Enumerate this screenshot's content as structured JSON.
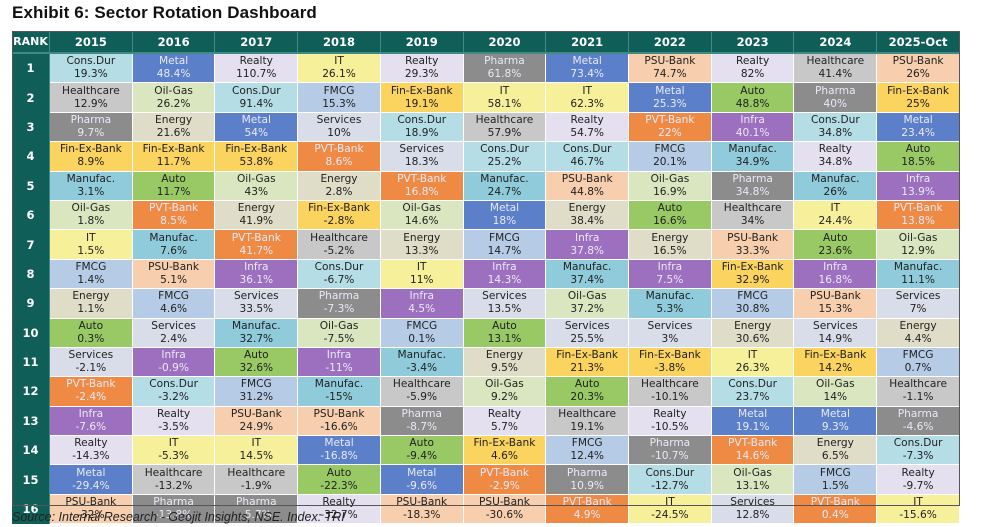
{
  "title": "Exhibit 6: Sector Rotation Dashboard",
  "source": "Source: Internal Research - Geojit Insights, NSE. Index: TRI",
  "header": {
    "rank_label": "RANK",
    "years": [
      "2015",
      "2016",
      "2017",
      "2018",
      "2019",
      "2020",
      "2021",
      "2022",
      "2023",
      "2024",
      "2025-Oct"
    ]
  },
  "sector_colors": {
    "Cons.Dur": "#b4dde6",
    "Metal": "#5b7fc8",
    "Realty": "#e4e0ef",
    "IT": "#f7f09a",
    "Pharma": "#8c8c8c",
    "PSU-Bank": "#f8cfae",
    "Healthcare": "#c8c8c8",
    "Oil-Gas": "#d9e6bf",
    "FMCG": "#b6cce6",
    "Fin-Ex-Bank": "#fbd35f",
    "Auto": "#99c965",
    "Energy": "#dfdcc7",
    "Services": "#d9dde9",
    "PVT-Bank": "#ef8a45",
    "Infra": "#9d6fbf",
    "Manufac.": "#8fcbdb"
  },
  "light_text_sectors": [
    "Metal",
    "Pharma",
    "PVT-Bank",
    "Infra"
  ],
  "rows": [
    {
      "rank": "1",
      "cells": [
        [
          "Cons.Dur",
          "19.3%"
        ],
        [
          "Metal",
          "48.4%"
        ],
        [
          "Realty",
          "110.7%"
        ],
        [
          "IT",
          "26.1%"
        ],
        [
          "Realty",
          "29.3%"
        ],
        [
          "Pharma",
          "61.8%"
        ],
        [
          "Metal",
          "73.4%"
        ],
        [
          "PSU-Bank",
          "74.7%"
        ],
        [
          "Realty",
          "82%"
        ],
        [
          "Healthcare",
          "41.4%"
        ],
        [
          "PSU-Bank",
          "26%"
        ]
      ]
    },
    {
      "rank": "2",
      "cells": [
        [
          "Healthcare",
          "12.9%"
        ],
        [
          "Oil-Gas",
          "26.2%"
        ],
        [
          "Cons.Dur",
          "91.4%"
        ],
        [
          "FMCG",
          "15.3%"
        ],
        [
          "Fin-Ex-Bank",
          "19.1%"
        ],
        [
          "IT",
          "58.1%"
        ],
        [
          "IT",
          "62.3%"
        ],
        [
          "Metal",
          "25.3%"
        ],
        [
          "Auto",
          "48.8%"
        ],
        [
          "Pharma",
          "40%"
        ],
        [
          "Fin-Ex-Bank",
          "25%"
        ]
      ]
    },
    {
      "rank": "3",
      "cells": [
        [
          "Pharma",
          "9.7%"
        ],
        [
          "Energy",
          "21.6%"
        ],
        [
          "Metal",
          "54%"
        ],
        [
          "Services",
          "10%"
        ],
        [
          "Cons.Dur",
          "18.9%"
        ],
        [
          "Healthcare",
          "57.9%"
        ],
        [
          "Realty",
          "54.7%"
        ],
        [
          "PVT-Bank",
          "22%"
        ],
        [
          "Infra",
          "40.1%"
        ],
        [
          "Cons.Dur",
          "34.8%"
        ],
        [
          "Metal",
          "23.4%"
        ]
      ]
    },
    {
      "rank": "4",
      "cells": [
        [
          "Fin-Ex-Bank",
          "8.9%"
        ],
        [
          "Fin-Ex-Bank",
          "11.7%"
        ],
        [
          "Fin-Ex-Bank",
          "53.8%"
        ],
        [
          "PVT-Bank",
          "8.6%"
        ],
        [
          "Services",
          "18.3%"
        ],
        [
          "Cons.Dur",
          "25.2%"
        ],
        [
          "Cons.Dur",
          "46.7%"
        ],
        [
          "FMCG",
          "20.1%"
        ],
        [
          "Manufac.",
          "34.9%"
        ],
        [
          "Realty",
          "34.8%"
        ],
        [
          "Auto",
          "18.5%"
        ]
      ]
    },
    {
      "rank": "5",
      "cells": [
        [
          "Manufac.",
          "3.1%"
        ],
        [
          "Auto",
          "11.7%"
        ],
        [
          "Oil-Gas",
          "43%"
        ],
        [
          "Energy",
          "2.8%"
        ],
        [
          "PVT-Bank",
          "16.8%"
        ],
        [
          "Manufac.",
          "24.7%"
        ],
        [
          "PSU-Bank",
          "44.8%"
        ],
        [
          "Oil-Gas",
          "16.9%"
        ],
        [
          "Pharma",
          "34.8%"
        ],
        [
          "Manufac.",
          "26%"
        ],
        [
          "Infra",
          "13.9%"
        ]
      ]
    },
    {
      "rank": "6",
      "cells": [
        [
          "Oil-Gas",
          "1.8%"
        ],
        [
          "PVT-Bank",
          "8.5%"
        ],
        [
          "Energy",
          "41.9%"
        ],
        [
          "Fin-Ex-Bank",
          "-2.8%"
        ],
        [
          "Oil-Gas",
          "14.6%"
        ],
        [
          "Metal",
          "18%"
        ],
        [
          "Energy",
          "38.4%"
        ],
        [
          "Auto",
          "16.6%"
        ],
        [
          "Healthcare",
          "34%"
        ],
        [
          "IT",
          "24.4%"
        ],
        [
          "PVT-Bank",
          "13.8%"
        ]
      ]
    },
    {
      "rank": "7",
      "cells": [
        [
          "IT",
          "1.5%"
        ],
        [
          "Manufac.",
          "7.6%"
        ],
        [
          "PVT-Bank",
          "41.7%"
        ],
        [
          "Healthcare",
          "-5.2%"
        ],
        [
          "Energy",
          "13.3%"
        ],
        [
          "FMCG",
          "14.7%"
        ],
        [
          "Infra",
          "37.8%"
        ],
        [
          "Energy",
          "16.5%"
        ],
        [
          "PSU-Bank",
          "33.3%"
        ],
        [
          "Auto",
          "23.6%"
        ],
        [
          "Oil-Gas",
          "12.9%"
        ]
      ]
    },
    {
      "rank": "8",
      "cells": [
        [
          "FMCG",
          "1.4%"
        ],
        [
          "PSU-Bank",
          "5.1%"
        ],
        [
          "Infra",
          "36.1%"
        ],
        [
          "Cons.Dur",
          "-6.7%"
        ],
        [
          "IT",
          "11%"
        ],
        [
          "Infra",
          "14.3%"
        ],
        [
          "Manufac.",
          "37.4%"
        ],
        [
          "Infra",
          "7.5%"
        ],
        [
          "Fin-Ex-Bank",
          "32.9%"
        ],
        [
          "Infra",
          "16.8%"
        ],
        [
          "Manufac.",
          "11.1%"
        ]
      ]
    },
    {
      "rank": "9",
      "cells": [
        [
          "Energy",
          "1.1%"
        ],
        [
          "FMCG",
          "4.6%"
        ],
        [
          "Services",
          "33.5%"
        ],
        [
          "Pharma",
          "-7.3%"
        ],
        [
          "Infra",
          "4.5%"
        ],
        [
          "Services",
          "13.5%"
        ],
        [
          "Oil-Gas",
          "37.2%"
        ],
        [
          "Manufac.",
          "5.3%"
        ],
        [
          "FMCG",
          "30.8%"
        ],
        [
          "PSU-Bank",
          "15.3%"
        ],
        [
          "Services",
          "7%"
        ]
      ]
    },
    {
      "rank": "10",
      "cells": [
        [
          "Auto",
          "0.3%"
        ],
        [
          "Services",
          "2.4%"
        ],
        [
          "Manufac.",
          "32.7%"
        ],
        [
          "Oil-Gas",
          "-7.5%"
        ],
        [
          "FMCG",
          "0.1%"
        ],
        [
          "Auto",
          "13.1%"
        ],
        [
          "Services",
          "25.5%"
        ],
        [
          "Services",
          "3%"
        ],
        [
          "Energy",
          "30.6%"
        ],
        [
          "Services",
          "14.9%"
        ],
        [
          "Energy",
          "4.4%"
        ]
      ]
    },
    {
      "rank": "11",
      "cells": [
        [
          "Services",
          "-2.1%"
        ],
        [
          "Infra",
          "-0.9%"
        ],
        [
          "Auto",
          "32.6%"
        ],
        [
          "Infra",
          "-11%"
        ],
        [
          "Manufac.",
          "-3.4%"
        ],
        [
          "Energy",
          "9.5%"
        ],
        [
          "Fin-Ex-Bank",
          "21.3%"
        ],
        [
          "Fin-Ex-Bank",
          "-3.8%"
        ],
        [
          "IT",
          "26.3%"
        ],
        [
          "Fin-Ex-Bank",
          "14.2%"
        ],
        [
          "FMCG",
          "0.7%"
        ]
      ]
    },
    {
      "rank": "12",
      "cells": [
        [
          "PVT-Bank",
          "-2.4%"
        ],
        [
          "Cons.Dur",
          "-3.2%"
        ],
        [
          "FMCG",
          "31.2%"
        ],
        [
          "Manufac.",
          "-15%"
        ],
        [
          "Healthcare",
          "-5.9%"
        ],
        [
          "Oil-Gas",
          "9.2%"
        ],
        [
          "Auto",
          "20.3%"
        ],
        [
          "Healthcare",
          "-10.1%"
        ],
        [
          "Cons.Dur",
          "23.7%"
        ],
        [
          "Oil-Gas",
          "14%"
        ],
        [
          "Healthcare",
          "-1.1%"
        ]
      ]
    },
    {
      "rank": "13",
      "cells": [
        [
          "Infra",
          "-7.6%"
        ],
        [
          "Realty",
          "-3.5%"
        ],
        [
          "PSU-Bank",
          "24.9%"
        ],
        [
          "PSU-Bank",
          "-16.6%"
        ],
        [
          "Pharma",
          "-8.7%"
        ],
        [
          "Realty",
          "5.7%"
        ],
        [
          "Healthcare",
          "19.1%"
        ],
        [
          "Realty",
          "-10.5%"
        ],
        [
          "Metal",
          "19.1%"
        ],
        [
          "Metal",
          "9.3%"
        ],
        [
          "Pharma",
          "-4.6%"
        ]
      ]
    },
    {
      "rank": "14",
      "cells": [
        [
          "Realty",
          "-14.3%"
        ],
        [
          "IT",
          "-5.3%"
        ],
        [
          "IT",
          "14.5%"
        ],
        [
          "Metal",
          "-16.8%"
        ],
        [
          "Auto",
          "-9.4%"
        ],
        [
          "Fin-Ex-Bank",
          "4.6%"
        ],
        [
          "FMCG",
          "12.4%"
        ],
        [
          "Pharma",
          "-10.7%"
        ],
        [
          "PVT-Bank",
          "14.6%"
        ],
        [
          "Energy",
          "6.5%"
        ],
        [
          "Cons.Dur",
          "-7.3%"
        ]
      ]
    },
    {
      "rank": "15",
      "cells": [
        [
          "Metal",
          "-29.4%"
        ],
        [
          "Healthcare",
          "-13.2%"
        ],
        [
          "Healthcare",
          "-1.9%"
        ],
        [
          "Auto",
          "-22.3%"
        ],
        [
          "Metal",
          "-9.6%"
        ],
        [
          "PVT-Bank",
          "-2.9%"
        ],
        [
          "Pharma",
          "10.9%"
        ],
        [
          "Cons.Dur",
          "-12.7%"
        ],
        [
          "Oil-Gas",
          "13.1%"
        ],
        [
          "FMCG",
          "1.5%"
        ],
        [
          "Realty",
          "-9.7%"
        ]
      ]
    },
    {
      "rank": "16",
      "cells": [
        [
          "PSU-Bank",
          "-32%"
        ],
        [
          "Pharma",
          "-13.8%"
        ],
        [
          "Pharma",
          "-5.7%"
        ],
        [
          "Realty",
          "-32.7%"
        ],
        [
          "PSU-Bank",
          "-18.3%"
        ],
        [
          "PSU-Bank",
          "-30.6%"
        ],
        [
          "PVT-Bank",
          "4.9%"
        ],
        [
          "IT",
          "-24.5%"
        ],
        [
          "Services",
          "12.8%"
        ],
        [
          "PVT-Bank",
          "0.4%"
        ],
        [
          "IT",
          "-15.6%"
        ]
      ]
    }
  ]
}
